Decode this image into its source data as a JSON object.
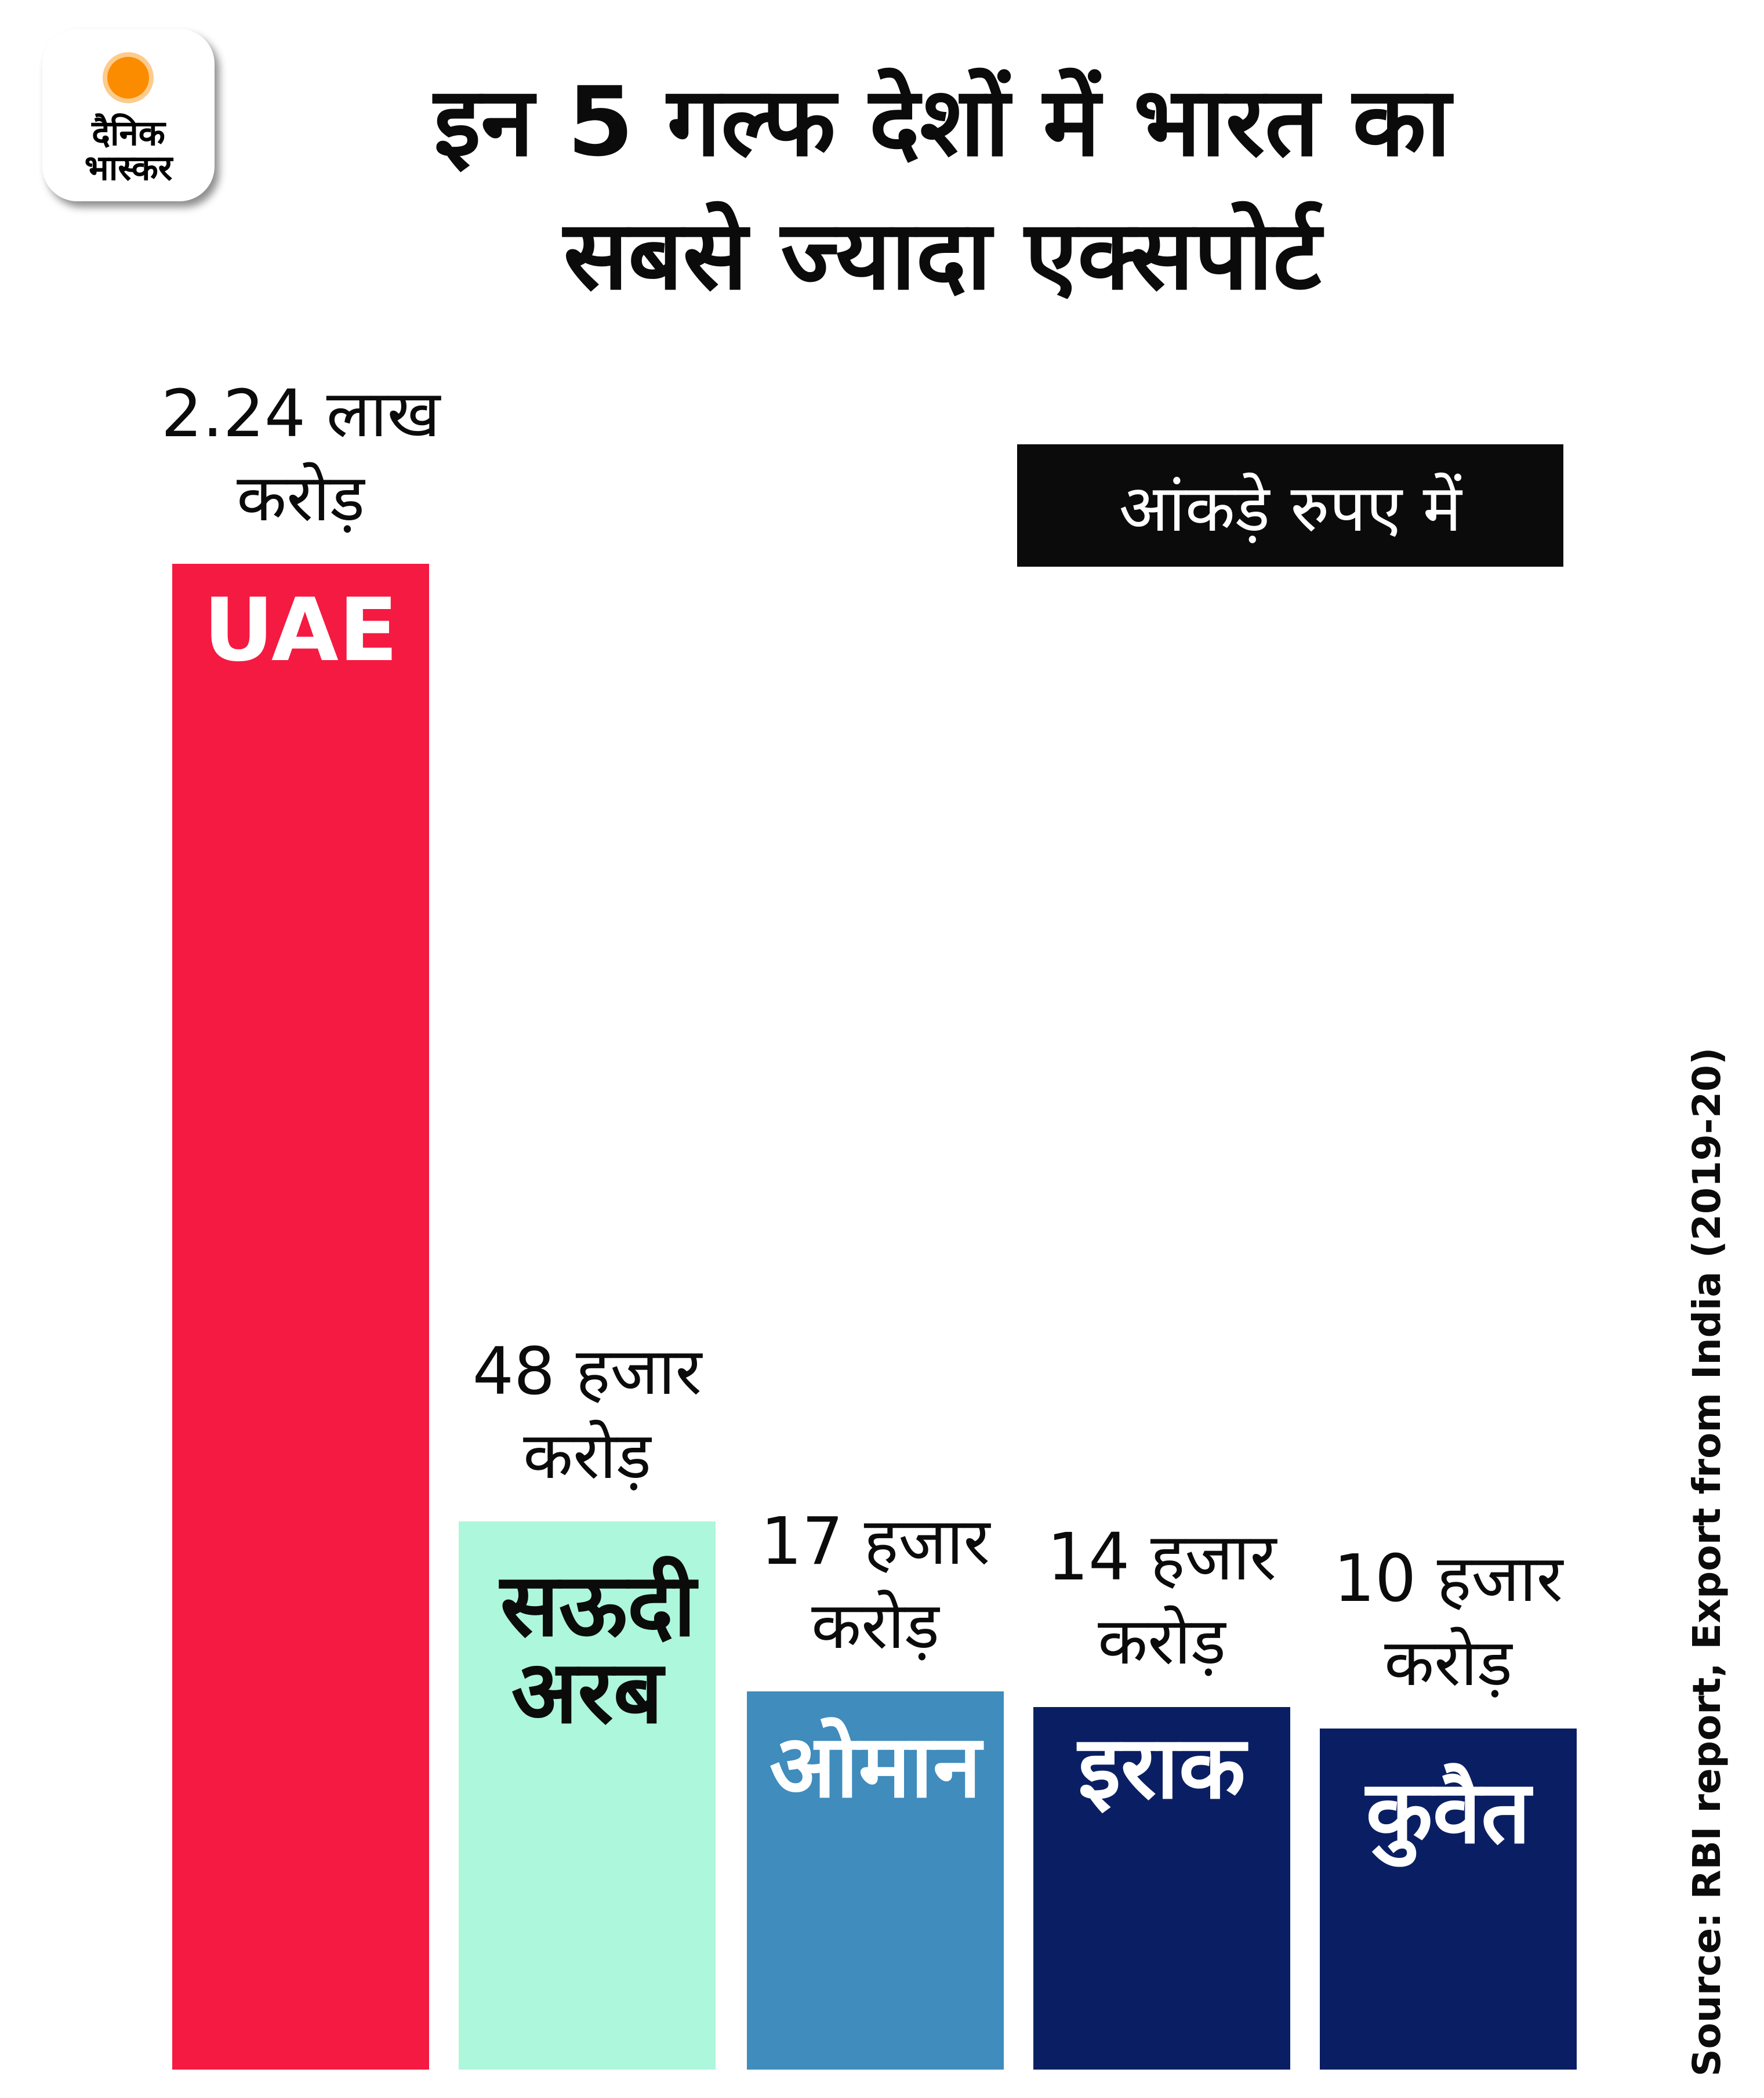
{
  "logo": {
    "line1": "दैनिक",
    "line2": "भास्कर"
  },
  "title": {
    "line1": "इन 5 गल्फ देशों में भारत का",
    "line2": "सबसे ज्यादा एक्सपोर्ट"
  },
  "badge": "आंकड़े रुपए में",
  "source": "Source: RBI report, Export from India (2019-20)",
  "chart_data": {
    "type": "bar",
    "title": "इन 5 गल्फ देशों में भारत का सबसे ज्यादा एक्सपोर्ट",
    "unit": "करोड़ रुपए",
    "categories": [
      "UAE",
      "सऊदी अरब",
      "ओमान",
      "इराक",
      "कुवैत"
    ],
    "values": [
      224000,
      48000,
      17000,
      14000,
      10000
    ],
    "labels": [
      [
        "2.24 लाख",
        "करोड़"
      ],
      [
        "48 हजार",
        "करोड़"
      ],
      [
        "17 हजार",
        "करोड़"
      ],
      [
        "14 हजार",
        "करोड़"
      ],
      [
        "10 हजार",
        "करोड़"
      ]
    ],
    "colors": [
      "#f51a41",
      "#adf7dc",
      "#3f8cbd",
      "#0a1f63",
      "#0a1f63"
    ],
    "name_colors": [
      "#ffffff",
      "#0b0b0b",
      "#ffffff",
      "#ffffff",
      "#ffffff"
    ]
  }
}
